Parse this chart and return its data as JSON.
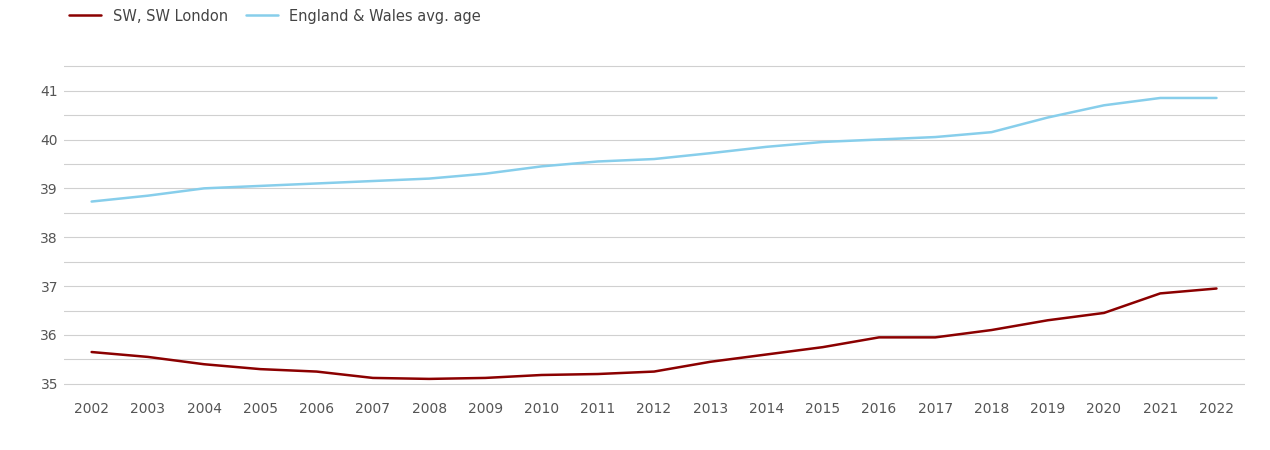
{
  "years": [
    2002,
    2003,
    2004,
    2005,
    2006,
    2007,
    2008,
    2009,
    2010,
    2011,
    2012,
    2013,
    2014,
    2015,
    2016,
    2017,
    2018,
    2019,
    2020,
    2021,
    2022
  ],
  "sw_london": [
    35.65,
    35.55,
    35.4,
    35.3,
    35.25,
    35.12,
    35.1,
    35.12,
    35.18,
    35.2,
    35.25,
    35.45,
    35.6,
    35.75,
    35.95,
    35.95,
    36.1,
    36.3,
    36.45,
    36.85,
    36.95
  ],
  "eng_wales": [
    38.73,
    38.85,
    39.0,
    39.05,
    39.1,
    39.15,
    39.2,
    39.3,
    39.45,
    39.55,
    39.6,
    39.72,
    39.85,
    39.95,
    40.0,
    40.05,
    40.15,
    40.45,
    40.7,
    40.85,
    40.85
  ],
  "sw_color": "#8b0000",
  "ew_color": "#87CEEB",
  "sw_label": "SW, SW London",
  "ew_label": "England & Wales avg. age",
  "ylim_min": 34.75,
  "ylim_max": 41.75,
  "yticks": [
    35,
    36,
    37,
    38,
    39,
    40,
    41
  ],
  "yticks_minor": [
    35.5,
    36.5,
    37.5,
    38.5,
    39.5,
    40.5,
    41.5
  ],
  "background_color": "#ffffff",
  "grid_color": "#d0d0d0",
  "line_width": 1.8,
  "legend_fontsize": 10.5,
  "tick_fontsize": 10
}
